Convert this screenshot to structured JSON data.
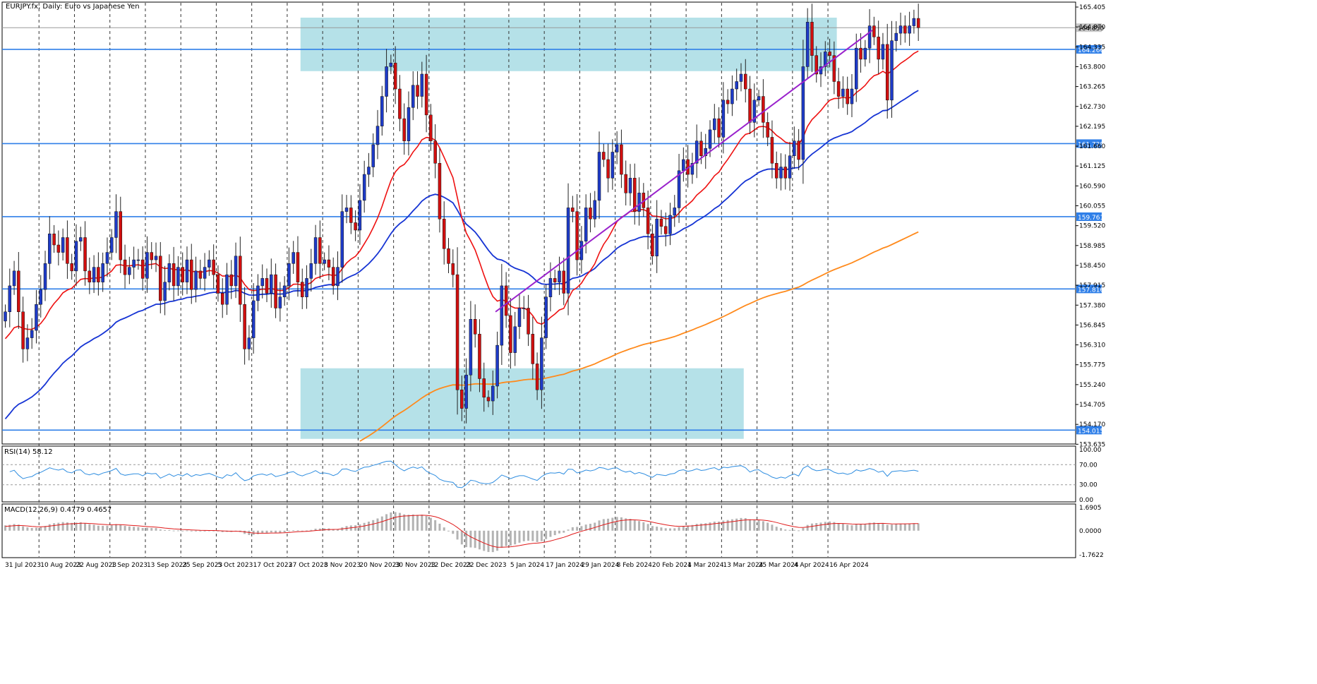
{
  "header": {
    "title": "EURJPY.fx, Daily: Euro vs Japanese Yen"
  },
  "colors": {
    "bull_body": "#1e3bc8",
    "bear_body": "#d10f0f",
    "wick": "#222222",
    "ema_fast": "#ee1111",
    "ema_mid": "#1634d4",
    "ema_slow": "#ff8a1c",
    "trendline": "#9a22cc",
    "level_line": "#2f7fe8",
    "zone_fill": "#a8dce4",
    "rsi_line": "#2e8de0",
    "macd_hist": "#b3b3b3",
    "macd_signal": "#e01a1a"
  },
  "price_axis": {
    "ticks": [
      "165.405",
      "164.870",
      "164.335",
      "163.800",
      "163.265",
      "162.730",
      "162.195",
      "161.660",
      "161.125",
      "160.590",
      "160.055",
      "159.520",
      "158.985",
      "158.450",
      "157.915",
      "157.380",
      "156.845",
      "156.310",
      "155.775",
      "155.240",
      "154.705",
      "154.170",
      "153.635"
    ],
    "current_price_label": "164.850",
    "level_labels": [
      "164.266",
      "161.729",
      "159.761",
      "157.816",
      "154.015"
    ]
  },
  "date_axis": {
    "labels": [
      "31 Jul 2023",
      "10 Aug 2023",
      "22 Aug 2023",
      "1 Sep 2023",
      "13 Sep 2023",
      "25 Sep 2023",
      "5 Oct 2023",
      "17 Oct 2023",
      "27 Oct 2023",
      "8 Nov 2023",
      "20 Nov 2023",
      "30 Nov 2023",
      "12 Dec 2023",
      "22 Dec 2023",
      "5 Jan 2024",
      "17 Jan 2024",
      "29 Jan 2024",
      "8 Feb 2024",
      "20 Feb 2024",
      "1 Mar 2024",
      "13 Mar 2024",
      "25 Mar 2024",
      "4 Apr 2024",
      "16 Apr 2024"
    ]
  },
  "rsi_panel": {
    "label": "RSI(14) 58.12",
    "ticks": [
      "100.00",
      "70.00",
      "30.00",
      "0.00"
    ]
  },
  "macd_panel": {
    "label": "MACD(12,26,9) 0.4779 0.4657",
    "ticks": [
      "1.6905",
      "0.0000",
      "-1.7622"
    ]
  },
  "chart_data": {
    "type": "candlestick",
    "title": "EURJPY.fx, Daily: Euro vs Japanese Yen",
    "ylim": [
      153.2,
      165.6
    ],
    "horizontal_levels": [
      164.266,
      161.729,
      159.761,
      157.816,
      154.015
    ],
    "zones": [
      {
        "from_date": "2023-11-01",
        "to_date": "2024-04-18",
        "low": 163.68,
        "high": 165.12
      },
      {
        "from_date": "2023-11-01",
        "to_date": "2024-03-20",
        "low": 153.78,
        "high": 155.68
      }
    ],
    "trendline": {
      "start": {
        "date": "2024-01-02",
        "price": 157.2
      },
      "end": {
        "date": "2024-04-30",
        "price": 164.78
      }
    },
    "closes": [
      157.2,
      157.9,
      158.3,
      157.2,
      156.2,
      156.5,
      156.7,
      157.4,
      157.8,
      158.5,
      159.3,
      159.0,
      158.8,
      159.2,
      158.5,
      158.3,
      159.1,
      159.2,
      158.3,
      158.0,
      158.4,
      158.0,
      158.5,
      158.8,
      159.2,
      159.9,
      158.6,
      158.2,
      158.4,
      158.6,
      158.6,
      158.1,
      158.8,
      158.6,
      158.7,
      157.5,
      158.0,
      158.5,
      157.9,
      158.4,
      158.0,
      158.6,
      157.8,
      158.3,
      158.1,
      158.4,
      158.6,
      158.2,
      157.7,
      157.4,
      158.2,
      157.9,
      158.7,
      157.4,
      156.2,
      156.5,
      157.5,
      157.9,
      158.1,
      157.7,
      158.2,
      157.3,
      157.6,
      157.9,
      158.5,
      158.8,
      158.0,
      157.6,
      158.1,
      158.5,
      159.2,
      158.5,
      158.6,
      158.4,
      157.9,
      158.4,
      159.9,
      160.0,
      159.6,
      159.4,
      160.2,
      160.9,
      161.1,
      161.7,
      162.2,
      163.0,
      163.8,
      163.9,
      163.2,
      162.4,
      161.8,
      162.7,
      163.3,
      163.0,
      163.6,
      162.5,
      161.8,
      161.2,
      159.7,
      158.9,
      158.5,
      158.2,
      155.1,
      154.6,
      155.5,
      157.0,
      156.6,
      155.4,
      154.9,
      154.8,
      155.2,
      156.3,
      157.9,
      157.1,
      156.1,
      156.8,
      157.3,
      157.3,
      156.6,
      155.8,
      155.1,
      156.5,
      157.6,
      158.1,
      158.0,
      158.3,
      157.7,
      160.0,
      159.9,
      158.6,
      159.1,
      160.0,
      159.7,
      160.2,
      161.5,
      161.3,
      160.8,
      161.5,
      161.7,
      160.9,
      160.4,
      160.8,
      159.9,
      160.4,
      160.0,
      159.3,
      158.7,
      159.7,
      159.5,
      159.3,
      159.8,
      160.0,
      161.0,
      161.3,
      160.9,
      161.2,
      161.8,
      161.4,
      161.6,
      162.1,
      162.4,
      161.9,
      162.9,
      162.8,
      163.2,
      163.4,
      163.6,
      163.2,
      162.3,
      162.9,
      163.0,
      162.3,
      161.9,
      161.2,
      160.8,
      161.1,
      160.8,
      161.4,
      161.8,
      161.3,
      163.8,
      165.0,
      164.1,
      163.6,
      163.8,
      164.2,
      164.1,
      163.4,
      163.0,
      163.2,
      162.8,
      163.2,
      164.3,
      164.0,
      164.3,
      164.9,
      164.6,
      164.0,
      164.4,
      162.9,
      164.5,
      164.7,
      164.9,
      164.7,
      164.9,
      165.1,
      164.85
    ]
  }
}
